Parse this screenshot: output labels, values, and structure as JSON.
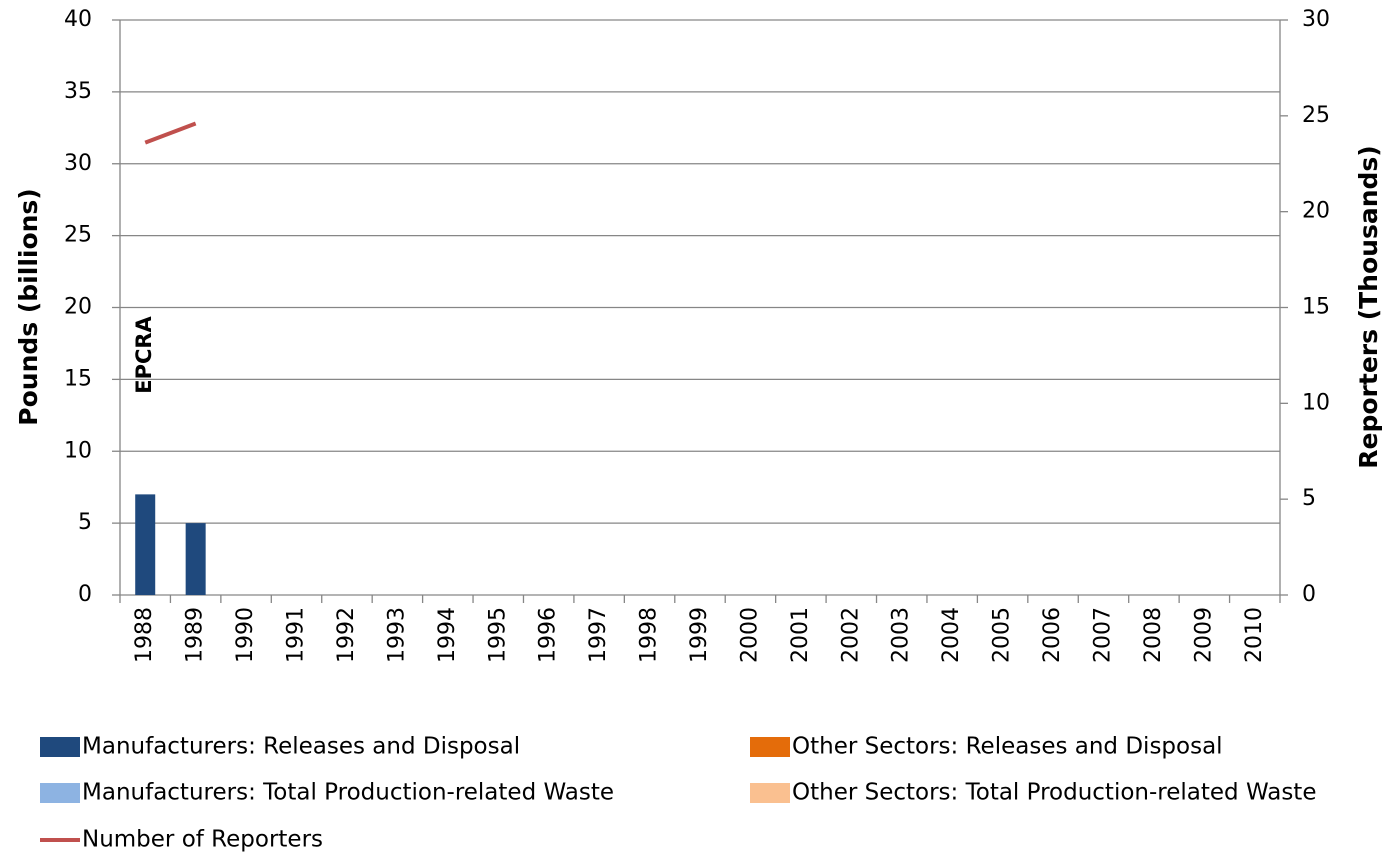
{
  "chart_data": {
    "type": "bar",
    "y_label": "Pounds (billions)",
    "y2_label": "Reporters (Thousands)",
    "annotation": "EPCRA",
    "categories": [
      "1988",
      "1989",
      "1990",
      "1991",
      "1992",
      "1993",
      "1994",
      "1995",
      "1996",
      "1997",
      "1998",
      "1999",
      "2000",
      "2001",
      "2002",
      "2003",
      "2004",
      "2005",
      "2006",
      "2007",
      "2008",
      "2009",
      "2010"
    ],
    "series": [
      {
        "name": "Manufacturers: Releases and Disposal",
        "type": "bar",
        "color": "#1f497d",
        "values": [
          7,
          5,
          null,
          null,
          null,
          null,
          null,
          null,
          null,
          null,
          null,
          null,
          null,
          null,
          null,
          null,
          null,
          null,
          null,
          null,
          null,
          null,
          null
        ]
      },
      {
        "name": "Manufacturers: Total Production-related Waste",
        "type": "bar",
        "color": "#8db3e2",
        "values": [
          null,
          null,
          null,
          null,
          null,
          null,
          null,
          null,
          null,
          null,
          null,
          null,
          null,
          null,
          null,
          null,
          null,
          null,
          null,
          null,
          null,
          null,
          null
        ]
      },
      {
        "name": "Other Sectors: Releases and Disposal",
        "type": "bar",
        "color": "#e46c0a",
        "values": [
          null,
          null,
          null,
          null,
          null,
          null,
          null,
          null,
          null,
          null,
          null,
          null,
          null,
          null,
          null,
          null,
          null,
          null,
          null,
          null,
          null,
          null,
          null
        ]
      },
      {
        "name": "Other Sectors: Total Production-related Waste",
        "type": "bar",
        "color": "#fac090",
        "values": [
          null,
          null,
          null,
          null,
          null,
          null,
          null,
          null,
          null,
          null,
          null,
          null,
          null,
          null,
          null,
          null,
          null,
          null,
          null,
          null,
          null,
          null,
          null
        ]
      },
      {
        "name": "Number of Reporters",
        "type": "line",
        "axis": "y2",
        "color": "#c0504d",
        "values": [
          23.6,
          24.6,
          null,
          null,
          null,
          null,
          null,
          null,
          null,
          null,
          null,
          null,
          null,
          null,
          null,
          null,
          null,
          null,
          null,
          null,
          null,
          null,
          null
        ]
      }
    ],
    "ylim": [
      0,
      40
    ],
    "yticks": [
      0,
      5,
      10,
      15,
      20,
      25,
      30,
      35,
      40
    ],
    "y2lim": [
      0,
      30
    ],
    "y2ticks": [
      0,
      5,
      10,
      15,
      20,
      25,
      30
    ],
    "grid": true
  }
}
